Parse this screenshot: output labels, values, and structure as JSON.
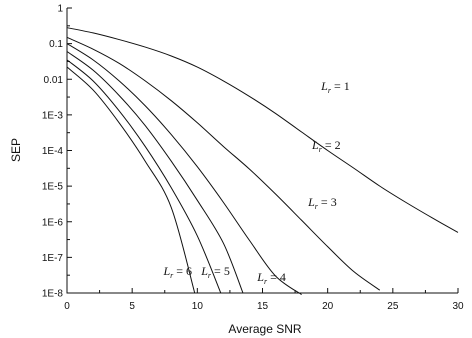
{
  "chart_data": {
    "type": "line",
    "title": "",
    "xlabel": "Average SNR",
    "ylabel": "SEP",
    "xlim": [
      0,
      30
    ],
    "ylim": [
      1e-08,
      1
    ],
    "y_scale": "log",
    "grid": false,
    "x_ticks": [
      "0",
      "5",
      "10",
      "15",
      "20",
      "25",
      "30"
    ],
    "x_tick_values": [
      0,
      5,
      10,
      15,
      20,
      25,
      30
    ],
    "y_ticks": [
      "1E-8",
      "1E-7",
      "1E-6",
      "1E-5",
      "1E-4",
      "1E-3",
      "0.01",
      "0.1",
      "1"
    ],
    "y_tick_values": [
      1e-08,
      1e-07,
      1e-06,
      1e-05,
      0.0001,
      0.001,
      0.01,
      0.1,
      1
    ],
    "series": [
      {
        "name": "Lr = 1",
        "label_prefix": "L",
        "label_sub": "r",
        "label_suffix": " = 1",
        "x": [
          0,
          2,
          4,
          6,
          8,
          10,
          12,
          14,
          16,
          18,
          20,
          22,
          24,
          26,
          28,
          30
        ],
        "y": [
          0.28,
          0.2,
          0.13,
          0.08,
          0.045,
          0.022,
          0.009,
          0.0033,
          0.0011,
          0.00033,
          0.0001,
          3.2e-05,
          1e-05,
          3.5e-06,
          1.3e-06,
          5e-07
        ]
      },
      {
        "name": "Lr = 2",
        "label_prefix": "L",
        "label_sub": "r",
        "label_suffix": " = 2",
        "x": [
          0,
          2,
          4,
          6,
          8,
          10,
          12,
          14,
          16,
          18,
          20,
          22,
          24
        ],
        "y": [
          0.15,
          0.07,
          0.028,
          0.009,
          0.0025,
          0.0006,
          0.00013,
          3e-05,
          6e-06,
          1.1e-06,
          2e-07,
          4e-08,
          1.2e-08
        ]
      },
      {
        "name": "Lr = 3",
        "label_prefix": "L",
        "label_sub": "r",
        "label_suffix": " = 3",
        "x": [
          0,
          2,
          4,
          6,
          8,
          10,
          12,
          14,
          16,
          18
        ],
        "y": [
          0.1,
          0.035,
          0.009,
          0.0018,
          0.00028,
          3.5e-05,
          3.5e-06,
          3e-07,
          3e-08,
          9e-09
        ]
      },
      {
        "name": "Lr = 4",
        "label_prefix": "L",
        "label_sub": "r",
        "label_suffix": " = 4",
        "x": [
          0,
          2,
          4,
          6,
          8,
          10,
          12,
          13.5
        ],
        "y": [
          0.06,
          0.018,
          0.0035,
          0.0005,
          5e-05,
          4e-06,
          2.5e-07,
          1e-08
        ]
      },
      {
        "name": "Lr = 5",
        "label_prefix": "L",
        "label_sub": "r",
        "label_suffix": " = 5",
        "x": [
          0,
          2,
          4,
          6,
          8,
          10,
          11.8
        ],
        "y": [
          0.035,
          0.009,
          0.0013,
          0.00013,
          9e-06,
          4e-07,
          1e-08
        ]
      },
      {
        "name": "Lr = 6",
        "label_prefix": "L",
        "label_sub": "r",
        "label_suffix": " = 6",
        "x": [
          0,
          2,
          4,
          6,
          8,
          9.8
        ],
        "y": [
          0.022,
          0.005,
          0.0006,
          5e-05,
          2.5e-06,
          1e-08
        ]
      }
    ],
    "annotations": [
      {
        "series": 0,
        "x": 19.5,
        "y": 0.005
      },
      {
        "series": 1,
        "x": 18.8,
        "y": 0.00011
      },
      {
        "series": 2,
        "x": 18.5,
        "y": 2.8e-06
      },
      {
        "series": 3,
        "x": 14.6,
        "y": 2.2e-08
      },
      {
        "series": 4,
        "x": 10.3,
        "y": 3.2e-08
      },
      {
        "series": 5,
        "x": 7.4,
        "y": 3.2e-08
      }
    ]
  }
}
